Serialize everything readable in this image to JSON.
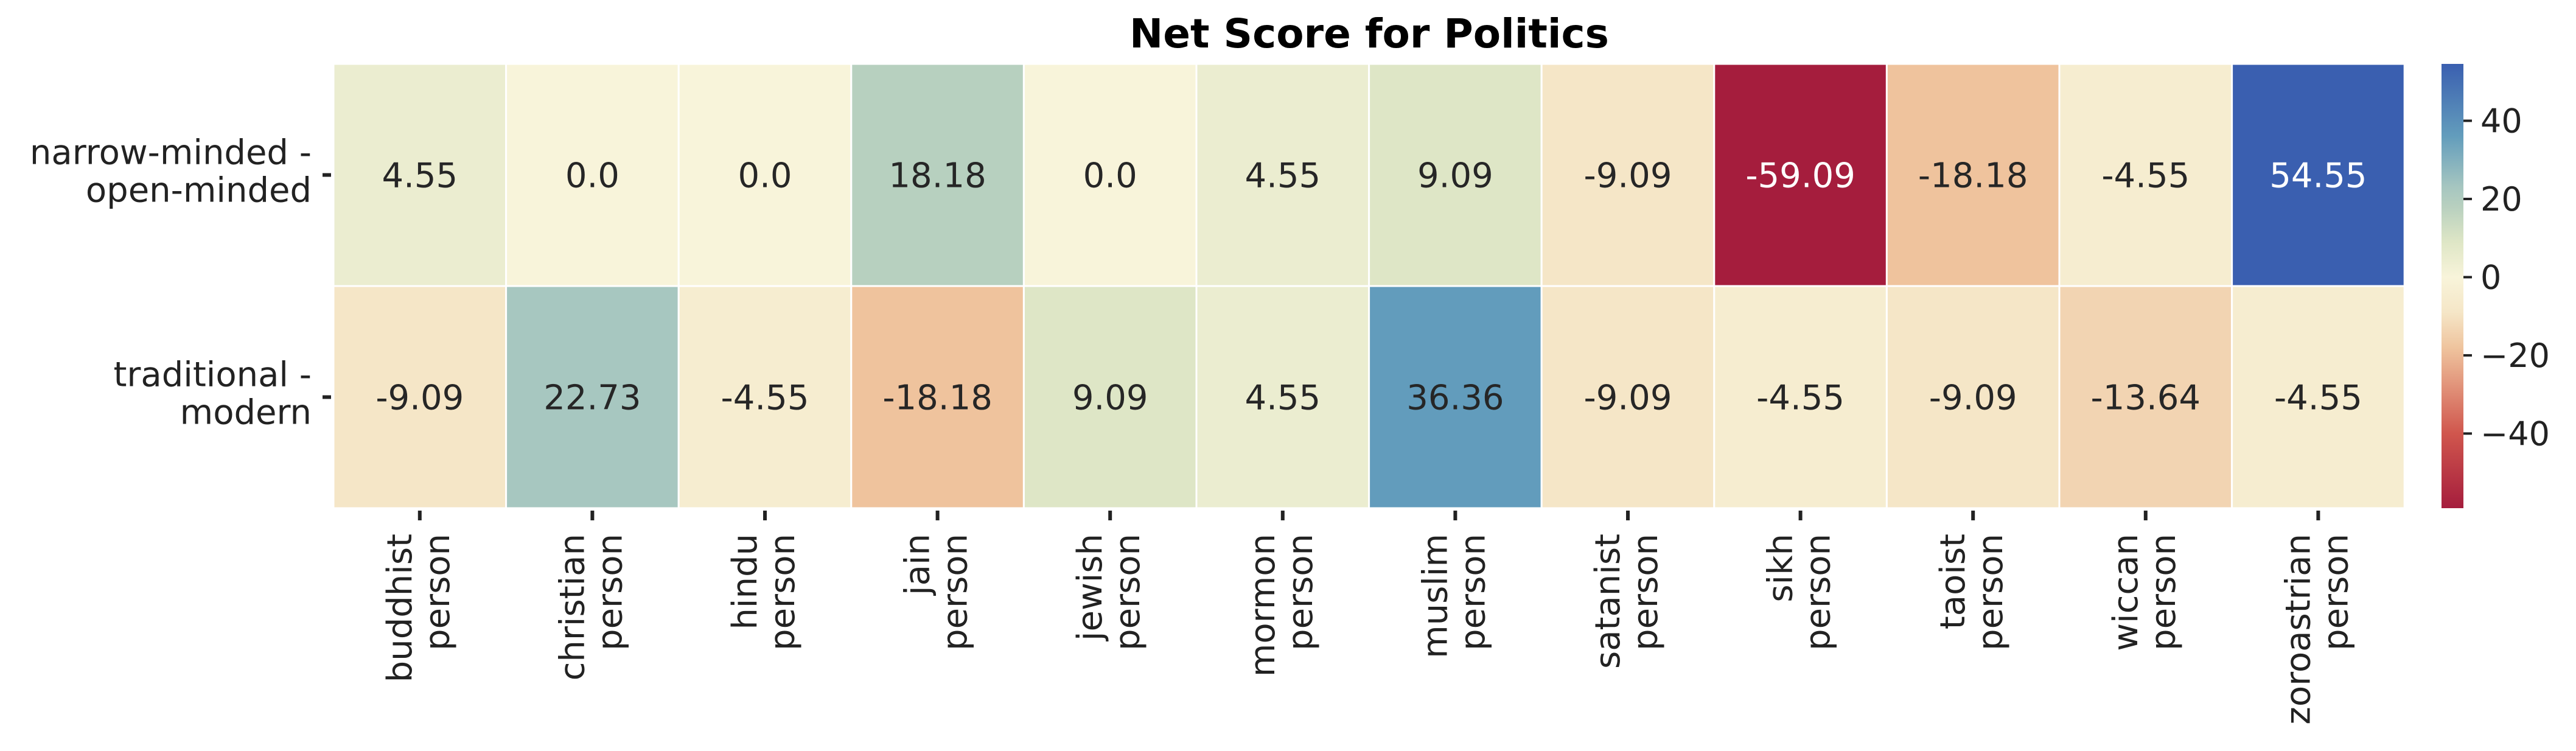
{
  "chart_data": {
    "type": "heatmap",
    "title": "Net Score for Politics",
    "rows": [
      [
        "narrow-minded -",
        "open-minded"
      ],
      [
        "traditional -",
        "modern"
      ]
    ],
    "columns": [
      [
        "buddhist",
        "person"
      ],
      [
        "christian",
        "person"
      ],
      [
        "hindu",
        "person"
      ],
      [
        "jain",
        "person"
      ],
      [
        "jewish",
        "person"
      ],
      [
        "mormon",
        "person"
      ],
      [
        "muslim",
        "person"
      ],
      [
        "satanist",
        "person"
      ],
      [
        "sikh",
        "person"
      ],
      [
        "taoist",
        "person"
      ],
      [
        "wiccan",
        "person"
      ],
      [
        "zoroastrian",
        "person"
      ]
    ],
    "values": [
      [
        4.55,
        0.0,
        0.0,
        18.18,
        0.0,
        4.55,
        9.09,
        -9.09,
        -59.09,
        -18.18,
        -4.55,
        54.55
      ],
      [
        -9.09,
        22.73,
        -4.55,
        -18.18,
        9.09,
        4.55,
        36.36,
        -9.09,
        -4.55,
        -9.09,
        -13.64,
        -4.55
      ]
    ],
    "value_labels": [
      [
        "4.55",
        "0.0",
        "0.0",
        "18.18",
        "0.0",
        "4.55",
        "9.09",
        "-9.09",
        "-59.09",
        "-18.18",
        "-4.55",
        "54.55"
      ],
      [
        "-9.09",
        "22.73",
        "-4.55",
        "-18.18",
        "9.09",
        "4.55",
        "36.36",
        "-9.09",
        "-4.55",
        "-9.09",
        "-13.64",
        "-4.55"
      ]
    ],
    "colorbar": {
      "vmin": -59.09,
      "vmax": 54.55,
      "ticks": [
        40,
        20,
        0,
        -20,
        -40
      ],
      "tick_labels": [
        "40",
        "20",
        "0",
        "−20",
        "−40"
      ],
      "colormap": "RdYlBu",
      "low_color": "#a50026",
      "mid_color": "#f8f4d8",
      "high_color": "#3a5fb0"
    }
  }
}
